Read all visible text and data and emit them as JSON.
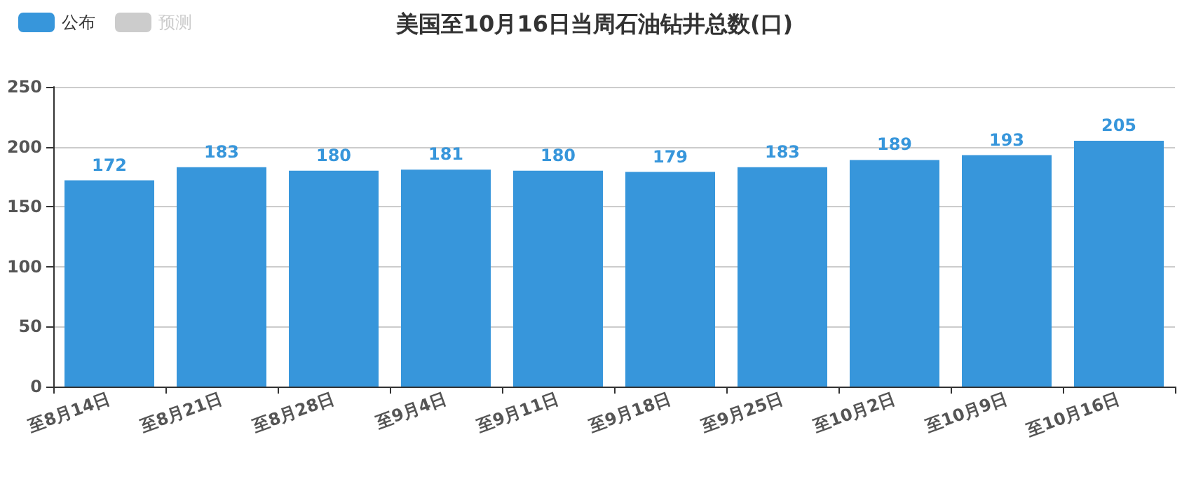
{
  "chart_data": {
    "type": "bar",
    "title": "美国至10月16日当周石油钻井总数(口)",
    "categories": [
      "至8月14日",
      "至8月21日",
      "至8月28日",
      "至9月4日",
      "至9月11日",
      "至9月18日",
      "至9月25日",
      "至10月2日",
      "至10月9日",
      "至10月16日"
    ],
    "series": [
      {
        "name": "公布",
        "color": "#3796db",
        "values": [
          172,
          183,
          180,
          181,
          180,
          179,
          183,
          189,
          193,
          205
        ]
      },
      {
        "name": "预测",
        "color": "#cccccc",
        "values": [
          null,
          null,
          null,
          null,
          null,
          null,
          null,
          null,
          null,
          null
        ]
      }
    ],
    "ylim": [
      0,
      250
    ],
    "yticks": [
      0,
      50,
      100,
      150,
      200,
      250
    ],
    "grid": "y",
    "legend": "top left",
    "data_labels": true
  }
}
